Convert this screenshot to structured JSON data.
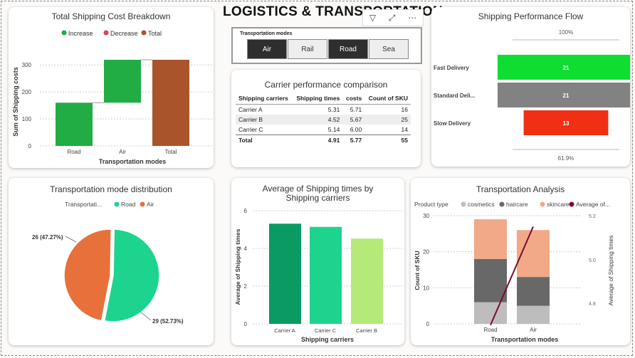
{
  "dashboard_title": "LOGISTICS & TRANSPORTATION",
  "colors": {
    "increase": "#21ac44",
    "decrease": "#d64550",
    "total": "#a9542b",
    "road_pie": "#1dd48f",
    "air_pie": "#e8703a",
    "fast": "#0fdd32",
    "standard": "#828282",
    "slow": "#f02f14",
    "car_a": "#0a9b62",
    "car_c": "#1dd48f",
    "car_b": "#b5ea78",
    "cosmetics": "#bdbdbd",
    "haircare": "#686868",
    "skincare": "#f1a988",
    "line": "#7a0c27"
  },
  "toolbar": {
    "filter_icon": "filter-icon",
    "focus_icon": "focus-mode-icon",
    "more_icon": "more-options-icon"
  },
  "waterfall": {
    "title": "Total Shipping Cost Breakdown",
    "legend": [
      "Increase",
      "Decrease",
      "Total"
    ],
    "ylabel": "Sum of Shipping costs",
    "xlabel": "Transportation modes",
    "chart_data": {
      "type": "bar",
      "categories": [
        "Road",
        "Air",
        "Total"
      ],
      "start": [
        0,
        160,
        0
      ],
      "end": [
        160,
        319,
        319
      ],
      "kind": [
        "increase",
        "increase",
        "total"
      ],
      "ylim": [
        0,
        330
      ],
      "yticks": [
        0,
        100,
        200,
        300
      ]
    }
  },
  "slicer": {
    "title": "Transportation modes",
    "options": [
      {
        "label": "Air",
        "selected": true
      },
      {
        "label": "Rail",
        "selected": false
      },
      {
        "label": "Road",
        "selected": true
      },
      {
        "label": "Sea",
        "selected": false
      }
    ]
  },
  "carrier_table": {
    "title": "Carrier performance comparison",
    "headers": [
      "Shipping carriers",
      "Shipping times",
      "costs",
      "Count of SKU"
    ],
    "rows": [
      [
        "Carrier A",
        "5.31",
        "5.71",
        "16"
      ],
      [
        "Carrier B",
        "4.52",
        "5.67",
        "25"
      ],
      [
        "Carrier C",
        "5.14",
        "6.00",
        "14"
      ]
    ],
    "total": [
      "Total",
      "4.91",
      "5.77",
      "55"
    ]
  },
  "funnel": {
    "title": "Shipping Performance Flow",
    "top_pct": "100%",
    "bottom_pct": "61.9%",
    "chart_data": {
      "type": "bar",
      "categories": [
        "Fast Delivery",
        "Standard Deli...",
        "Slow Delivery"
      ],
      "values": [
        21,
        21,
        13
      ]
    }
  },
  "pie": {
    "title": "Transportation mode distribution",
    "legend_title": "Transportati...",
    "chart_data": {
      "type": "pie",
      "categories": [
        "Road",
        "Air"
      ],
      "values": [
        29,
        26
      ],
      "labels": [
        "29 (52.73%)",
        "26 (47.27%)"
      ]
    }
  },
  "avg_bar": {
    "title": "Average of Shipping times by Shipping carriers",
    "ylabel": "Average of Shipping times",
    "xlabel": "Shipping carriers",
    "chart_data": {
      "type": "bar",
      "categories": [
        "Carrier A",
        "Carrier C",
        "Carrier B"
      ],
      "values": [
        5.31,
        5.14,
        4.52
      ],
      "ylim": [
        0,
        6
      ],
      "yticks": [
        0,
        2,
        4,
        6
      ]
    }
  },
  "analysis": {
    "title": "Transportation Analysis",
    "legend_title": "Product type",
    "legend": [
      "cosmetics",
      "haircare",
      "skincare",
      "Average of..."
    ],
    "ylabel": "Count of SKU",
    "y2label": "Average of Shipping times",
    "xlabel": "Transportation modes",
    "chart_data": {
      "type": "bar",
      "categories": [
        "Road",
        "Air"
      ],
      "series": [
        {
          "name": "cosmetics",
          "values": [
            6,
            5
          ]
        },
        {
          "name": "haircare",
          "values": [
            12,
            8
          ]
        },
        {
          "name": "skincare",
          "values": [
            11,
            13
          ]
        }
      ],
      "line": {
        "name": "Average of...",
        "values": [
          4.7,
          5.15
        ]
      },
      "ylim": [
        0,
        30
      ],
      "yticks": [
        0,
        10,
        20,
        30
      ],
      "y2ticks": [
        "4.8",
        "5.0",
        "5.2"
      ]
    }
  }
}
